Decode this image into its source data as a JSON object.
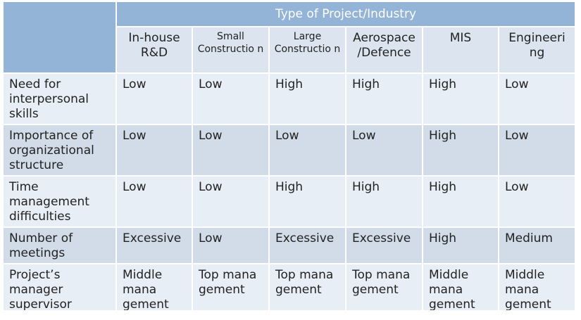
{
  "table": {
    "title": "Type of Project/Industry",
    "columns": [
      "In-house R&D",
      "Small Constructio n",
      "Large Constructio n",
      "Aerospace /Defence",
      "MIS",
      "Engineeri ng"
    ],
    "rows": [
      {
        "label": "Need for interpersonal skills",
        "values": [
          "Low",
          "Low",
          "High",
          "High",
          "High",
          "Low"
        ]
      },
      {
        "label": "Importance of organizational structure",
        "values": [
          "Low",
          "Low",
          "Low",
          "Low",
          "High",
          "Low"
        ]
      },
      {
        "label": "Time management difficulties",
        "values": [
          "Low",
          "Low",
          "High",
          "High",
          "High",
          "Low"
        ]
      },
      {
        "label": "Number of meetings",
        "values": [
          "Excessive",
          "Low",
          "Excessive",
          "Excessive",
          "High",
          "Medium"
        ]
      },
      {
        "label": "Project’s manager supervisor",
        "values": [
          "Middle mana gement",
          "Top mana gement",
          "Top mana gement",
          "Top mana gement",
          "Middle mana gement",
          "Middle mana gement"
        ]
      }
    ]
  }
}
